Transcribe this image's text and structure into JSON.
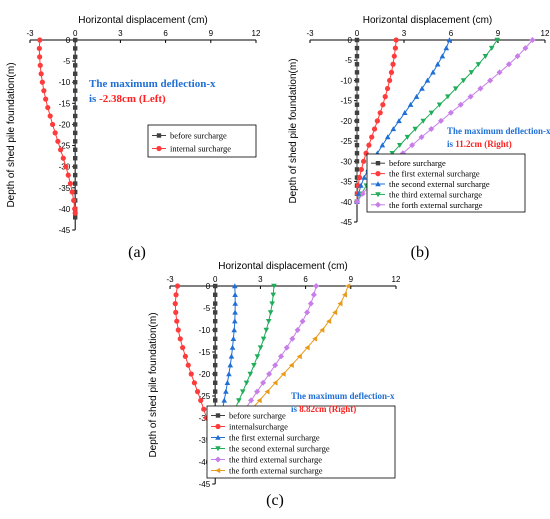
{
  "chart_data": [
    {
      "id": "a",
      "type": "scatter",
      "panel_label": "(a)",
      "xlabel": "Horizontal displacement (cm)",
      "ylabel": "Depth of shed pile foundation(m)",
      "xlim": [
        -3,
        12
      ],
      "ylim": [
        -45,
        0
      ],
      "x_ticks": [
        -3,
        0,
        3,
        6,
        9,
        12
      ],
      "y_ticks": [
        0,
        -5,
        -10,
        -15,
        -20,
        -25,
        -30,
        -35,
        -40,
        -45
      ],
      "annotation": {
        "line1": "The maximum deflection-x",
        "prefix": "is ",
        "value": "-2.38cm",
        "suffix": " (Left)"
      },
      "legend_position": "right-middle",
      "series": [
        {
          "name": "before surcharge",
          "color": "#404040",
          "marker": "square",
          "x": [
            0,
            0,
            0,
            0,
            0,
            0,
            0,
            0,
            0,
            0,
            0,
            0,
            0,
            0,
            0,
            0,
            0,
            0,
            0,
            0,
            0,
            0,
            0
          ],
          "y": [
            0,
            -2,
            -4,
            -6,
            -8,
            -10,
            -12,
            -14,
            -16,
            -18,
            -20,
            -22,
            -24,
            -26,
            -28,
            -30,
            -32,
            -34,
            -36,
            -38,
            -40,
            -41,
            -42
          ]
        },
        {
          "name": "internal surcharge",
          "color": "#ff3b3b",
          "marker": "circle",
          "x": [
            -2.35,
            -2.38,
            -2.36,
            -2.32,
            -2.26,
            -2.18,
            -2.08,
            -1.96,
            -1.82,
            -1.66,
            -1.5,
            -1.33,
            -1.15,
            -0.97,
            -0.79,
            -0.62,
            -0.46,
            -0.32,
            -0.2,
            -0.1,
            -0.03,
            0
          ],
          "y": [
            0,
            -2,
            -4,
            -6,
            -8,
            -10,
            -12,
            -14,
            -16,
            -18,
            -20,
            -22,
            -24,
            -26,
            -28,
            -30,
            -32,
            -34,
            -36,
            -38,
            -40,
            -41
          ]
        }
      ]
    },
    {
      "id": "b",
      "type": "scatter",
      "panel_label": "(b)",
      "xlabel": "Horizontal displacement (cm)",
      "ylabel": "Depth of shed pile foundation(m)",
      "xlim": [
        -3,
        12
      ],
      "ylim": [
        -45,
        0
      ],
      "x_ticks": [
        -3,
        0,
        3,
        6,
        9,
        12
      ],
      "y_ticks": [
        0,
        -5,
        -10,
        -15,
        -20,
        -25,
        -30,
        -35,
        -40,
        -45
      ],
      "annotation": {
        "line1": "The maximum deflection-x",
        "prefix": "is ",
        "value": "11.2cm",
        "suffix": " (Right)"
      },
      "legend_position": "bottom-right",
      "series": [
        {
          "name": "before surcharge",
          "color": "#404040",
          "marker": "square",
          "x": [
            0,
            0,
            0,
            0,
            0,
            0,
            0,
            0,
            0,
            0,
            0,
            0,
            0,
            0,
            0,
            0,
            0,
            0,
            0,
            0,
            0
          ],
          "y": [
            0,
            -2,
            -4,
            -6,
            -8,
            -10,
            -12,
            -14,
            -16,
            -18,
            -20,
            -22,
            -24,
            -26,
            -28,
            -30,
            -32,
            -34,
            -36,
            -38,
            -40
          ]
        },
        {
          "name": "the first external surcharge",
          "color": "#ff3b3b",
          "marker": "circle",
          "x": [
            2.5,
            2.45,
            2.38,
            2.3,
            2.2,
            2.08,
            1.95,
            1.8,
            1.65,
            1.48,
            1.3,
            1.12,
            0.94,
            0.76,
            0.58,
            0.42,
            0.28,
            0.16,
            0.07,
            0.02,
            0
          ],
          "y": [
            0,
            -2,
            -4,
            -6,
            -8,
            -10,
            -12,
            -14,
            -16,
            -18,
            -20,
            -22,
            -24,
            -26,
            -28,
            -30,
            -32,
            -34,
            -36,
            -38,
            -40
          ]
        },
        {
          "name": "the second external surcharge",
          "color": "#1f6fd6",
          "marker": "triangle-up",
          "x": [
            5.9,
            5.7,
            5.45,
            5.15,
            4.85,
            4.5,
            4.15,
            3.8,
            3.42,
            3.05,
            2.68,
            2.32,
            1.96,
            1.62,
            1.3,
            0.99,
            0.71,
            0.46,
            0.25,
            0.1,
            0
          ],
          "y": [
            0,
            -2,
            -4,
            -6,
            -8,
            -10,
            -12,
            -14,
            -16,
            -18,
            -20,
            -22,
            -24,
            -26,
            -28,
            -30,
            -32,
            -34,
            -36,
            -38,
            -40
          ]
        },
        {
          "name": "the third external surcharge",
          "color": "#1fae5a",
          "marker": "triangle-down",
          "x": [
            8.95,
            8.6,
            8.2,
            7.75,
            7.3,
            6.8,
            6.3,
            5.8,
            5.27,
            4.75,
            4.23,
            3.72,
            3.22,
            2.73,
            2.25,
            1.8,
            1.37,
            0.97,
            0.6,
            0.28,
            0
          ],
          "y": [
            0,
            -2,
            -4,
            -6,
            -8,
            -10,
            -12,
            -14,
            -16,
            -18,
            -20,
            -22,
            -24,
            -26,
            -28,
            -30,
            -32,
            -34,
            -36,
            -38,
            -40
          ]
        },
        {
          "name": "the forth external surcharge",
          "color": "#c77ee8",
          "marker": "diamond",
          "x": [
            11.2,
            10.75,
            10.25,
            9.7,
            9.1,
            8.5,
            7.88,
            7.25,
            6.62,
            5.99,
            5.36,
            4.74,
            4.12,
            3.52,
            2.93,
            2.36,
            1.8,
            1.28,
            0.8,
            0.37,
            0
          ],
          "y": [
            0,
            -2,
            -4,
            -6,
            -8,
            -10,
            -12,
            -14,
            -16,
            -18,
            -20,
            -22,
            -24,
            -26,
            -28,
            -30,
            -32,
            -34,
            -36,
            -38,
            -40
          ]
        }
      ]
    },
    {
      "id": "c",
      "type": "scatter",
      "panel_label": "(c)",
      "xlabel": "Horizontal displacement (cm)",
      "ylabel": "Depth of shed pile foundation(m)",
      "xlim": [
        -3,
        12
      ],
      "ylim": [
        -45,
        0
      ],
      "x_ticks": [
        -3,
        0,
        3,
        6,
        9,
        12
      ],
      "y_ticks": [
        0,
        -5,
        -10,
        -15,
        -20,
        -25,
        -30,
        -35,
        -40,
        -45
      ],
      "annotation": {
        "line1": "The maximum deflection-x",
        "prefix": "is ",
        "value": "8.82cm",
        "suffix": " (Right)"
      },
      "legend_position": "bottom-right",
      "series": [
        {
          "name": "before surcharge",
          "color": "#404040",
          "marker": "square",
          "x": [
            0,
            0,
            0,
            0,
            0,
            0,
            0,
            0,
            0,
            0,
            0,
            0,
            0,
            0,
            0,
            0,
            0,
            0,
            0,
            0,
            0
          ],
          "y": [
            0,
            -2,
            -4,
            -6,
            -8,
            -10,
            -12,
            -14,
            -16,
            -18,
            -20,
            -22,
            -24,
            -26,
            -28,
            -30,
            -32,
            -34,
            -36,
            -38,
            -40
          ]
        },
        {
          "name": "internalsurcharge",
          "color": "#ff3b3b",
          "marker": "circle",
          "x": [
            -2.5,
            -2.6,
            -2.65,
            -2.62,
            -2.55,
            -2.45,
            -2.32,
            -2.16,
            -1.98,
            -1.79,
            -1.59,
            -1.38,
            -1.17,
            -0.96,
            -0.76,
            -0.57,
            -0.4,
            -0.26,
            -0.14,
            -0.05,
            0
          ],
          "y": [
            0,
            -2,
            -4,
            -6,
            -8,
            -10,
            -12,
            -14,
            -16,
            -18,
            -20,
            -22,
            -24,
            -26,
            -28,
            -30,
            -32,
            -34,
            -36,
            -38,
            -40
          ]
        },
        {
          "name": "the first external surcharge",
          "color": "#1f6fd6",
          "marker": "triangle-up",
          "x": [
            1.3,
            1.32,
            1.33,
            1.32,
            1.3,
            1.26,
            1.21,
            1.15,
            1.08,
            1.0,
            0.91,
            0.81,
            0.71,
            0.6,
            0.49,
            0.38,
            0.28,
            0.18,
            0.1,
            0.04,
            0
          ],
          "y": [
            0,
            -2,
            -4,
            -6,
            -8,
            -10,
            -12,
            -14,
            -16,
            -18,
            -20,
            -22,
            -24,
            -26,
            -28,
            -30,
            -32,
            -34,
            -36,
            -38,
            -40
          ]
        },
        {
          "name": "the second external surcharge",
          "color": "#1fae5a",
          "marker": "triangle-down",
          "x": [
            3.9,
            3.85,
            3.78,
            3.68,
            3.55,
            3.39,
            3.21,
            3.01,
            2.8,
            2.57,
            2.33,
            2.08,
            1.83,
            1.57,
            1.31,
            1.06,
            0.81,
            0.58,
            0.37,
            0.17,
            0
          ],
          "y": [
            0,
            -2,
            -4,
            -6,
            -8,
            -10,
            -12,
            -14,
            -16,
            -18,
            -20,
            -22,
            -24,
            -26,
            -28,
            -30,
            -32,
            -34,
            -36,
            -38,
            -40
          ]
        },
        {
          "name": "the third external surcharge",
          "color": "#c77ee8",
          "marker": "diamond",
          "x": [
            6.7,
            6.55,
            6.35,
            6.1,
            5.8,
            5.47,
            5.12,
            4.75,
            4.37,
            3.98,
            3.58,
            3.18,
            2.78,
            2.38,
            1.99,
            1.6,
            1.23,
            0.88,
            0.55,
            0.25,
            0
          ],
          "y": [
            0,
            -2,
            -4,
            -6,
            -8,
            -10,
            -12,
            -14,
            -16,
            -18,
            -20,
            -22,
            -24,
            -26,
            -28,
            -30,
            -32,
            -34,
            -36,
            -38,
            -40
          ]
        },
        {
          "name": "the forth external surcharge",
          "color": "#e89a1a",
          "marker": "triangle-left",
          "x": [
            8.82,
            8.6,
            8.3,
            7.95,
            7.55,
            7.1,
            6.62,
            6.12,
            5.6,
            5.07,
            4.53,
            3.99,
            3.46,
            2.94,
            2.43,
            1.94,
            1.47,
            1.04,
            0.65,
            0.3,
            0
          ],
          "y": [
            0,
            -2,
            -4,
            -6,
            -8,
            -10,
            -12,
            -14,
            -16,
            -18,
            -20,
            -22,
            -24,
            -26,
            -28,
            -30,
            -32,
            -34,
            -36,
            -38,
            -40
          ]
        }
      ]
    }
  ]
}
